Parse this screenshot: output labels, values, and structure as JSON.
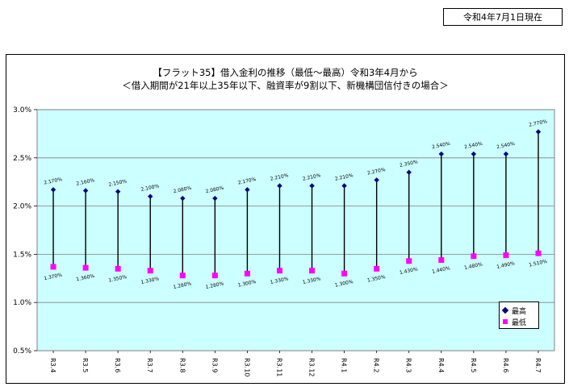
{
  "header": {
    "as_of": "令和4年7月1日現在"
  },
  "chart_data": {
    "type": "line",
    "title": "【フラット35】借入金利の推移（最低～最高）令和3年4月から",
    "subtitle": "＜借入期間が21年以上35年以下、融資率が9割以下、新機構団信付きの場合＞",
    "xlabel": "",
    "ylabel": "",
    "ylim": [
      0.5,
      3.0
    ],
    "yticks": [
      "0.5%",
      "1.0%",
      "1.5%",
      "2.0%",
      "2.5%",
      "3.0%"
    ],
    "categories": [
      "R3.4",
      "R3.5",
      "R3.6",
      "R3.7",
      "R3.8",
      "R3.9",
      "R3.10",
      "R3.11",
      "R3.12",
      "R4.1",
      "R4.2",
      "R4.3",
      "R4.4",
      "R4.5",
      "R4.6",
      "R4.7"
    ],
    "series": [
      {
        "name": "最高",
        "color": "#000080",
        "values": [
          2.17,
          2.16,
          2.15,
          2.1,
          2.08,
          2.08,
          2.17,
          2.21,
          2.21,
          2.21,
          2.27,
          2.35,
          2.54,
          2.54,
          2.54,
          2.77
        ],
        "labels": [
          "2.170%",
          "2.160%",
          "2.150%",
          "2.100%",
          "2.080%",
          "2.080%",
          "2.170%",
          "2.210%",
          "2.210%",
          "2.210%",
          "2.270%",
          "2.350%",
          "2.540%",
          "2.540%",
          "2.540%",
          "2.770%"
        ]
      },
      {
        "name": "最低",
        "color": "#ff00ff",
        "values": [
          1.37,
          1.36,
          1.35,
          1.33,
          1.28,
          1.28,
          1.3,
          1.33,
          1.33,
          1.3,
          1.35,
          1.43,
          1.44,
          1.48,
          1.49,
          1.51
        ],
        "labels": [
          "1.370%",
          "1.360%",
          "1.350%",
          "1.330%",
          "1.280%",
          "1.280%",
          "1.300%",
          "1.330%",
          "1.330%",
          "1.300%",
          "1.350%",
          "1.430%",
          "1.440%",
          "1.480%",
          "1.490%",
          "1.510%"
        ]
      }
    ],
    "grid": true,
    "legend": "bottom-right"
  }
}
